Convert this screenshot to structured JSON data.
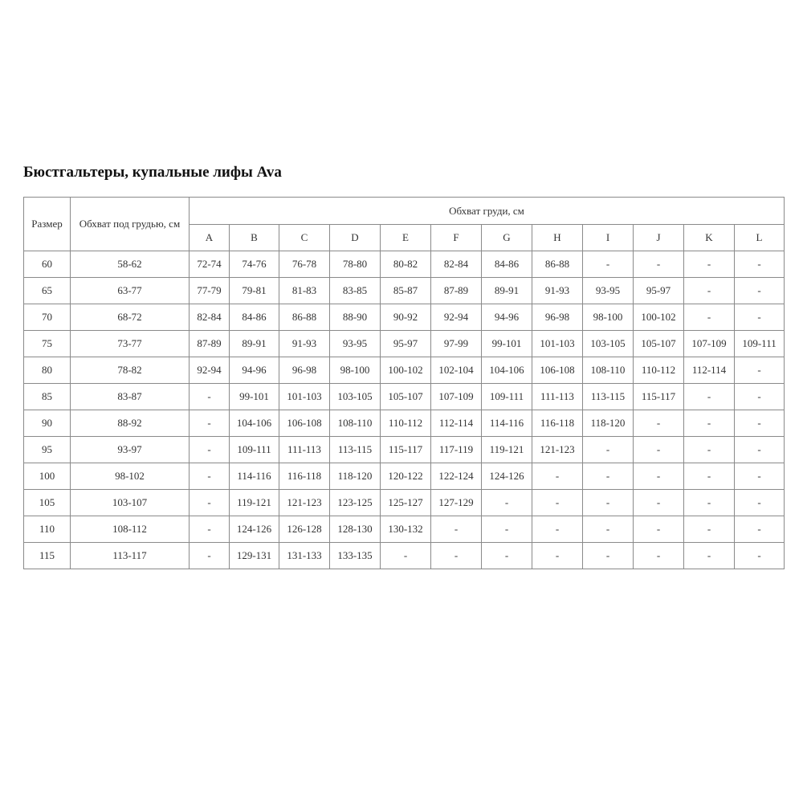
{
  "title": "Бюстгальтеры, купальные лифы Ava",
  "headers": {
    "size": "Размер",
    "underbust": "Обхват под грудью, см",
    "bust": "Обхват груди, см",
    "cups": [
      "A",
      "B",
      "C",
      "D",
      "E",
      "F",
      "G",
      "H",
      "I",
      "J",
      "K",
      "L"
    ]
  },
  "rows": [
    {
      "size": "60",
      "underbust": "58-62",
      "cells": [
        "72-74",
        "74-76",
        "76-78",
        "78-80",
        "80-82",
        "82-84",
        "84-86",
        "86-88",
        "-",
        "-",
        "-",
        "-"
      ]
    },
    {
      "size": "65",
      "underbust": "63-77",
      "cells": [
        "77-79",
        "79-81",
        "81-83",
        "83-85",
        "85-87",
        "87-89",
        "89-91",
        "91-93",
        "93-95",
        "95-97",
        "-",
        "-"
      ]
    },
    {
      "size": "70",
      "underbust": "68-72",
      "cells": [
        "82-84",
        "84-86",
        "86-88",
        "88-90",
        "90-92",
        "92-94",
        "94-96",
        "96-98",
        "98-100",
        "100-102",
        "-",
        "-"
      ]
    },
    {
      "size": "75",
      "underbust": "73-77",
      "cells": [
        "87-89",
        "89-91",
        "91-93",
        "93-95",
        "95-97",
        "97-99",
        "99-101",
        "101-103",
        "103-105",
        "105-107",
        "107-109",
        "109-111"
      ]
    },
    {
      "size": "80",
      "underbust": "78-82",
      "cells": [
        "92-94",
        "94-96",
        "96-98",
        "98-100",
        "100-102",
        "102-104",
        "104-106",
        "106-108",
        "108-110",
        "110-112",
        "112-114",
        "-"
      ]
    },
    {
      "size": "85",
      "underbust": "83-87",
      "cells": [
        "-",
        "99-101",
        "101-103",
        "103-105",
        "105-107",
        "107-109",
        "109-111",
        "111-113",
        "113-115",
        "115-117",
        "-",
        "-"
      ]
    },
    {
      "size": "90",
      "underbust": "88-92",
      "cells": [
        "-",
        "104-106",
        "106-108",
        "108-110",
        "110-112",
        "112-114",
        "114-116",
        "116-118",
        "118-120",
        "-",
        "-",
        "-"
      ]
    },
    {
      "size": "95",
      "underbust": "93-97",
      "cells": [
        "-",
        "109-111",
        "111-113",
        "113-115",
        "115-117",
        "117-119",
        "119-121",
        "121-123",
        "-",
        "-",
        "-",
        "-"
      ]
    },
    {
      "size": "100",
      "underbust": "98-102",
      "cells": [
        "-",
        "114-116",
        "116-118",
        "118-120",
        "120-122",
        "122-124",
        "124-126",
        "-",
        "-",
        "-",
        "-",
        "-"
      ]
    },
    {
      "size": "105",
      "underbust": "103-107",
      "cells": [
        "-",
        "119-121",
        "121-123",
        "123-125",
        "125-127",
        "127-129",
        "-",
        "-",
        "-",
        "-",
        "-",
        "-"
      ]
    },
    {
      "size": "110",
      "underbust": "108-112",
      "cells": [
        "-",
        "124-126",
        "126-128",
        "128-130",
        "130-132",
        "-",
        "-",
        "-",
        "-",
        "-",
        "-",
        "-"
      ]
    },
    {
      "size": "115",
      "underbust": "113-117",
      "cells": [
        "-",
        "129-131",
        "131-133",
        "133-135",
        "-",
        "-",
        "-",
        "-",
        "-",
        "-",
        "-",
        "-"
      ]
    }
  ]
}
